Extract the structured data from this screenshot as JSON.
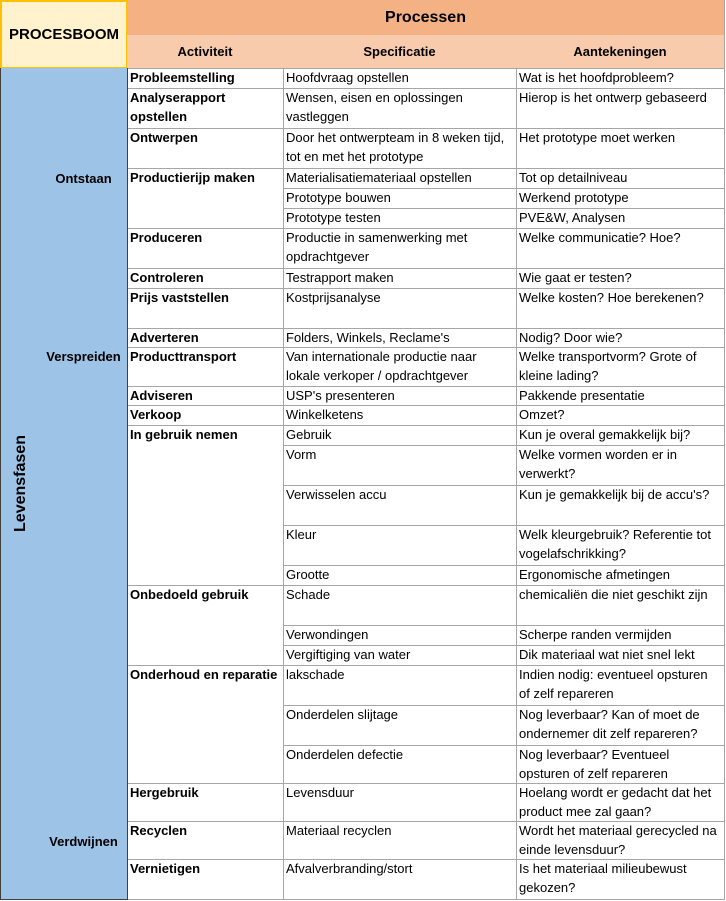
{
  "header": {
    "title": "PROCESBOOM",
    "processes": "Processen",
    "columns": [
      "Activiteit",
      "Specificatie",
      "Aantekeningen"
    ]
  },
  "side_label": "Levensfasen",
  "phases": [
    {
      "name": "Ontstaan",
      "activities": [
        {
          "name": "Probleemstelling",
          "rows": [
            {
              "specification": "Hoofdvraag opstellen",
              "notes": "Wat is het hoofdprobleem?"
            }
          ]
        },
        {
          "name": "Analyserapport opstellen",
          "rows": [
            {
              "specification": "Wensen, eisen en oplossingen vastleggen",
              "notes": "Hierop is het ontwerp gebaseerd"
            }
          ]
        },
        {
          "name": "Ontwerpen",
          "rows": [
            {
              "specification": "Door het ontwerpteam in 8 weken tijd, tot en met het prototype",
              "notes": "Het prototype moet werken"
            }
          ]
        },
        {
          "name": "Productierijp maken",
          "rows": [
            {
              "specification": "Materialisatiemateriaal opstellen",
              "notes": "Tot op detailniveau"
            },
            {
              "specification": "Prototype bouwen",
              "notes": "Werkend prototype"
            },
            {
              "specification": "Prototype testen",
              "notes": "PVE&W, Analysen"
            }
          ]
        },
        {
          "name": "Produceren",
          "rows": [
            {
              "specification": "Productie in samenwerking met opdrachtgever",
              "notes": "Welke communicatie? Hoe?"
            }
          ]
        },
        {
          "name": "Controleren",
          "rows": [
            {
              "specification": "Testrapport maken",
              "notes": "Wie gaat er testen?"
            }
          ]
        }
      ]
    },
    {
      "name": "Verspreiden",
      "activities": [
        {
          "name": "Prijs vaststellen",
          "rows": [
            {
              "specification": "Kostprijsanalyse",
              "notes": "Welke kosten? Hoe berekenen?"
            }
          ]
        },
        {
          "name": "Adverteren",
          "rows": [
            {
              "specification": "Folders, Winkels, Reclame's",
              "notes": "Nodig? Door wie?"
            }
          ]
        },
        {
          "name": "Producttransport",
          "rows": [
            {
              "specification": "Van internationale productie naar lokale verkoper / opdrachtgever",
              "notes": "Welke transportvorm? Grote of kleine lading?"
            }
          ]
        },
        {
          "name": "Adviseren",
          "rows": [
            {
              "specification": "USP's presenteren",
              "notes": "Pakkende presentatie"
            }
          ]
        },
        {
          "name": "Verkoop",
          "rows": [
            {
              "specification": "Winkelketens",
              "notes": "Omzet?"
            }
          ]
        }
      ]
    },
    {
      "name": null,
      "activities": [
        {
          "name": "In gebruik nemen",
          "rows": [
            {
              "specification": "Gebruik",
              "notes": "Kun je overal gemakkelijk bij?"
            },
            {
              "specification": "Vorm",
              "notes": "Welke vormen worden er in verwerkt?"
            },
            {
              "specification": "Verwisselen accu",
              "notes": "Kun je gemakkelijk bij de accu's?"
            },
            {
              "specification": "Kleur",
              "notes": "Welk kleurgebruik? Referentie tot vogelafschrikking?"
            },
            {
              "specification": "Grootte",
              "notes": "Ergonomische afmetingen"
            }
          ]
        },
        {
          "name": "Onbedoeld gebruik",
          "rows": [
            {
              "specification": "Schade",
              "notes": "chemicaliën die niet geschikt zijn"
            },
            {
              "specification": "Verwondingen",
              "notes": "Scherpe randen vermijden"
            },
            {
              "specification": "Vergiftiging van water",
              "notes": "Dik materiaal wat niet snel lekt"
            }
          ]
        },
        {
          "name": "Onderhoud en reparatie",
          "rows": [
            {
              "specification": "lakschade",
              "notes": "Indien nodig: eventueel opsturen of zelf repareren"
            },
            {
              "specification": "Onderdelen slijtage",
              "notes": "Nog leverbaar? Kan of moet de ondernemer dit zelf repareren?"
            },
            {
              "specification": "Onderdelen defectie",
              "notes": "Nog leverbaar? Eventueel opsturen of zelf repareren"
            }
          ]
        }
      ]
    },
    {
      "name": "Verdwijnen",
      "activities": [
        {
          "name": "Hergebruik",
          "rows": [
            {
              "specification": "Levensduur",
              "notes": "Hoelang wordt er gedacht dat het product mee zal gaan?"
            }
          ]
        },
        {
          "name": "Recyclen",
          "rows": [
            {
              "specification": "Materiaal recyclen",
              "notes": "Wordt het materiaal gerecycled na einde levensduur?"
            }
          ]
        },
        {
          "name": "Vernietigen",
          "rows": [
            {
              "specification": "Afvalverbranding/stort",
              "notes": "Is het materiaal milieubewust gekozen?"
            }
          ]
        }
      ]
    }
  ]
}
